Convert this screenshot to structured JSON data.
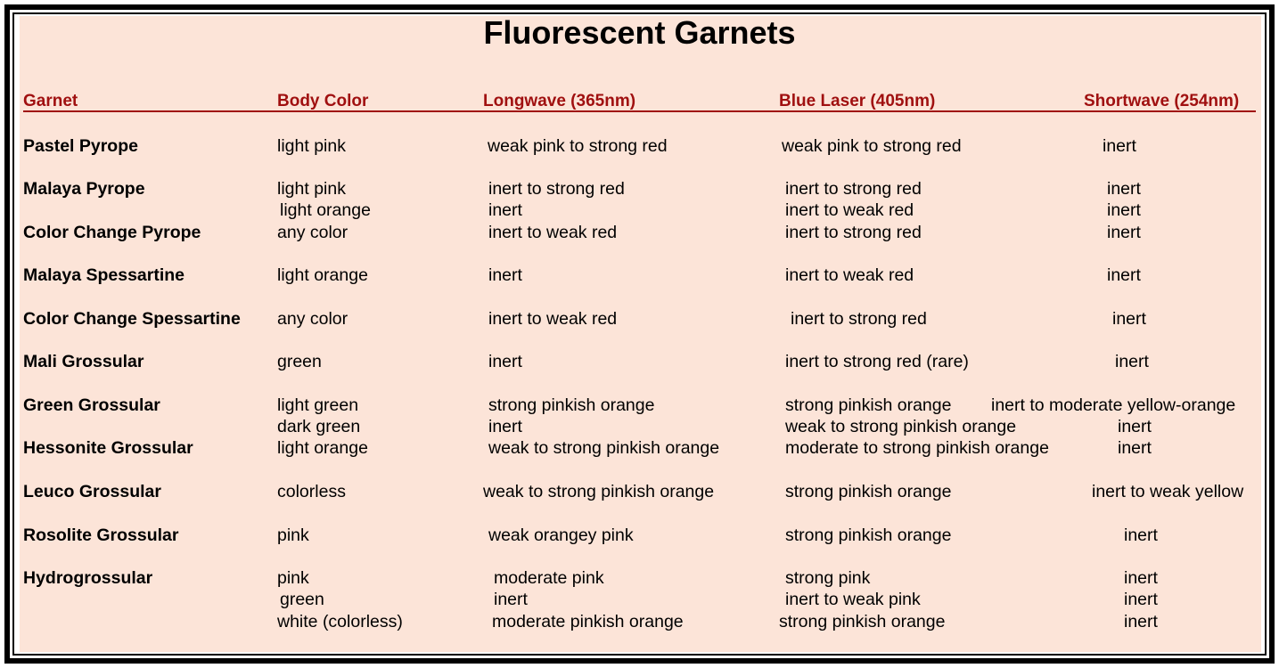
{
  "title": "Fluorescent Garnets",
  "colors": {
    "background": "#fce4d8",
    "header": "#a01010",
    "border": "#000000"
  },
  "headers": [
    "Garnet",
    "Body Color",
    "Longwave (365nm)",
    "Blue Laser (405nm)",
    "Shortwave (254nm)"
  ],
  "lines": [
    {
      "garnet": "Pastel Pyrope",
      "body": "light pink",
      "longwave": "weak pink to strong red",
      "blue": "weak pink to strong red",
      "shortwave": "inert"
    },
    {
      "garnet": "Malaya Pyrope",
      "body": "light pink",
      "longwave": "inert to strong red",
      "blue": "inert to strong red",
      "shortwave": "inert"
    },
    {
      "garnet": "",
      "body": "light orange",
      "longwave": "inert",
      "blue": "inert to weak red",
      "shortwave": "inert"
    },
    {
      "garnet": "Color Change Pyrope",
      "body": "any color",
      "longwave": "inert to weak red",
      "blue": "inert to strong red",
      "shortwave": "inert"
    },
    {
      "garnet": "Malaya Spessartine",
      "body": "light orange",
      "longwave": "inert",
      "blue": "inert to weak red",
      "shortwave": "inert"
    },
    {
      "garnet": "Color Change Spessartine",
      "body": "any color",
      "longwave": "inert to weak red",
      "blue": "inert to strong red",
      "shortwave": "inert"
    },
    {
      "garnet": "Mali Grossular",
      "body": "green",
      "longwave": "inert",
      "blue": "inert to strong red (rare)",
      "shortwave": "inert"
    },
    {
      "garnet": "Green Grossular",
      "body": "light green",
      "longwave": "strong pinkish orange",
      "blue": "strong pinkish orange",
      "shortwave": "inert to moderate yellow-orange"
    },
    {
      "garnet": "",
      "body": "dark green",
      "longwave": "inert",
      "blue": "weak to strong pinkish orange",
      "shortwave": "inert"
    },
    {
      "garnet": "Hessonite Grossular",
      "body": "light orange",
      "longwave": "weak to strong pinkish orange",
      "blue": "moderate to strong pinkish orange",
      "shortwave": "inert"
    },
    {
      "garnet": "Leuco Grossular",
      "body": "colorless",
      "longwave": "weak to strong pinkish orange",
      "blue": "strong pinkish orange",
      "shortwave": "inert to weak yellow"
    },
    {
      "garnet": "Rosolite Grossular",
      "body": "pink",
      "longwave": "weak orangey pink",
      "blue": "strong pinkish orange",
      "shortwave": "inert"
    },
    {
      "garnet": "Hydrogrossular",
      "body": "pink",
      "longwave": "moderate pink",
      "blue": "strong pink",
      "shortwave": "inert"
    },
    {
      "garnet": "",
      "body": "green",
      "longwave": "inert",
      "blue": "inert to weak pink",
      "shortwave": "inert"
    },
    {
      "garnet": "",
      "body": "white (colorless)",
      "longwave": "moderate pinkish orange",
      "blue": "strong pinkish orange",
      "shortwave": "inert"
    }
  ]
}
